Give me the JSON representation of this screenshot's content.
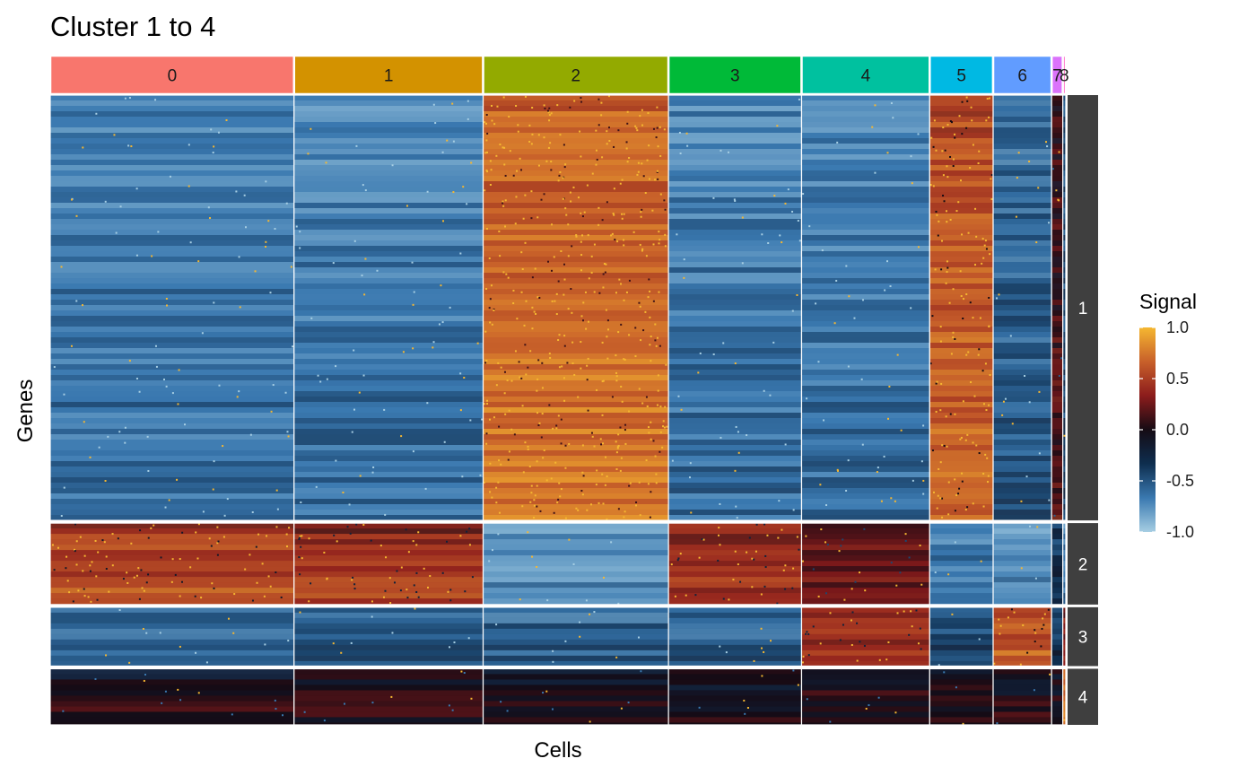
{
  "chart_data": {
    "type": "heatmap",
    "title": "Cluster 1 to 4",
    "xlabel": "Cells",
    "ylabel": "Genes",
    "legend": {
      "title": "Signal",
      "ticks": [
        "1.0",
        "0.5",
        "0.0",
        "-0.5",
        "-1.0"
      ],
      "range": [
        -1.0,
        1.0
      ],
      "placement": "right",
      "colors": [
        "#F5B731",
        "#C8602A",
        "#8C1C1C",
        "#150B14",
        "#0E2E4F",
        "#3A79B0",
        "#A6CEE3"
      ]
    },
    "column_groups": [
      {
        "label": "0",
        "color": "#F8766D",
        "cells": 980
      },
      {
        "label": "1",
        "color": "#D39200",
        "cells": 760
      },
      {
        "label": "2",
        "color": "#93AA00",
        "cells": 745
      },
      {
        "label": "3",
        "color": "#00BA38",
        "cells": 535
      },
      {
        "label": "4",
        "color": "#00C19F",
        "cells": 515
      },
      {
        "label": "5",
        "color": "#00B9E3",
        "cells": 255
      },
      {
        "label": "6",
        "color": "#619CFF",
        "cells": 235
      },
      {
        "label": "7",
        "color": "#DB72FB",
        "cells": 45
      },
      {
        "label": "8",
        "color": "#FF61C3",
        "cells": 12
      }
    ],
    "row_clusters": [
      {
        "label": "1",
        "genes": 470
      },
      {
        "label": "2",
        "genes": 90
      },
      {
        "label": "3",
        "genes": 65
      },
      {
        "label": "4",
        "genes": 62
      }
    ],
    "mean_signal": {
      "columns": [
        "0",
        "1",
        "2",
        "3",
        "4",
        "5",
        "6",
        "7",
        "8"
      ],
      "rows": [
        "1",
        "2",
        "3",
        "4"
      ],
      "values": [
        [
          -0.6,
          -0.6,
          0.7,
          -0.6,
          -0.6,
          0.6,
          -0.5,
          0.1,
          -0.4
        ],
        [
          0.5,
          0.4,
          -0.7,
          0.4,
          0.2,
          -0.6,
          -0.7,
          -0.3,
          -0.6
        ],
        [
          -0.5,
          -0.5,
          -0.5,
          -0.5,
          0.4,
          -0.4,
          0.6,
          -0.3,
          0.3
        ],
        [
          0.0,
          0.0,
          0.0,
          0.0,
          0.0,
          0.0,
          0.0,
          0.0,
          0.7
        ]
      ]
    }
  }
}
